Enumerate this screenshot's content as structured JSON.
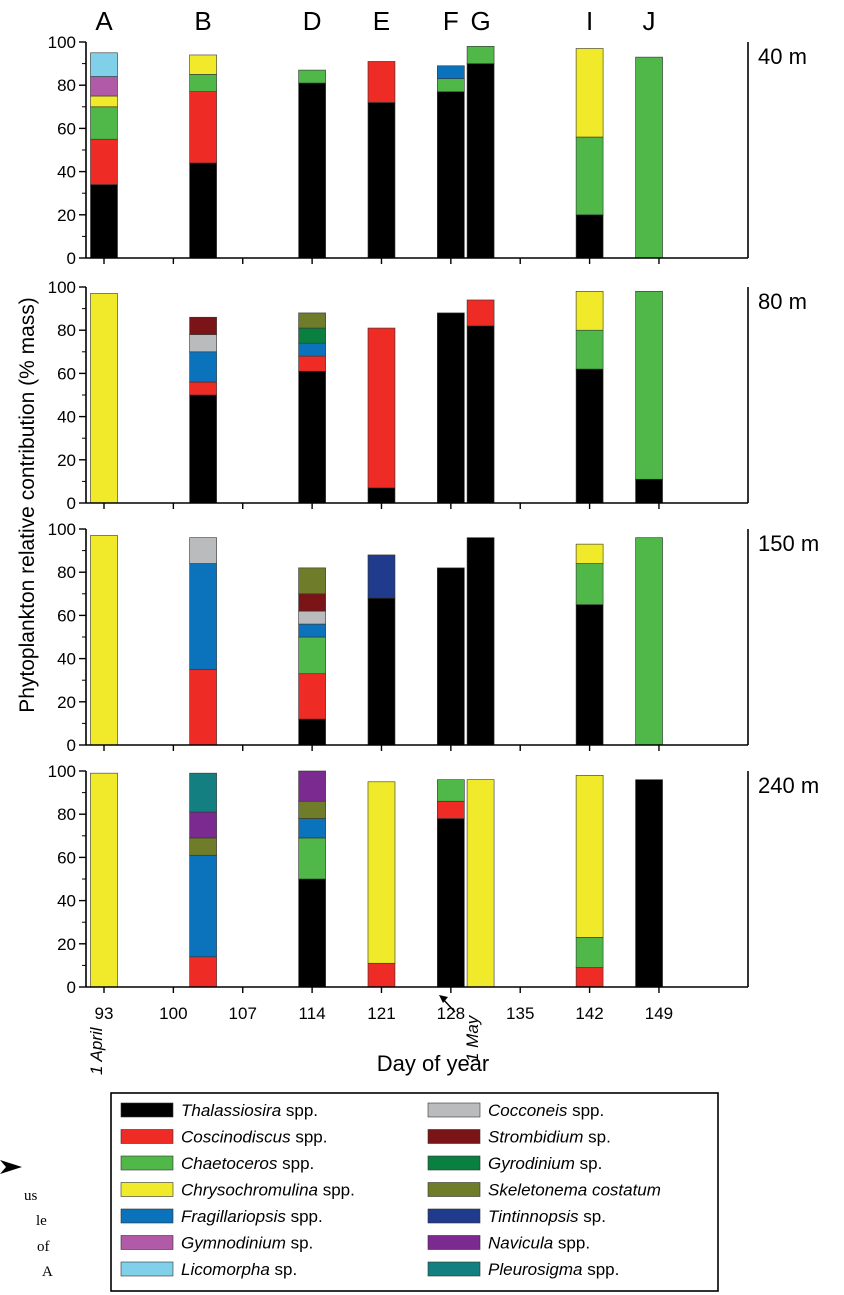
{
  "chart_data": {
    "type": "bar",
    "stacked": true,
    "ylabel": "Phytoplankton relative contribution (% mass)",
    "xlabel": "Day of year",
    "ylim": [
      0,
      100
    ],
    "yticks": [
      0,
      20,
      40,
      60,
      80,
      100
    ],
    "xlim": [
      90,
      150
    ],
    "xticks": [
      93,
      100,
      107,
      114,
      121,
      128,
      135,
      142,
      149
    ],
    "annotations": {
      "april": "1 April",
      "may": "1 May"
    },
    "stations": [
      {
        "label": "A",
        "day": 93
      },
      {
        "label": "B",
        "day": 103
      },
      {
        "label": "D",
        "day": 114
      },
      {
        "label": "E",
        "day": 121
      },
      {
        "label": "F",
        "day": 128
      },
      {
        "label": "G",
        "day": 131
      },
      {
        "label": "I",
        "day": 142
      },
      {
        "label": "J",
        "day": 148
      }
    ],
    "taxa": [
      {
        "key": "thal",
        "genus": "Thalassiosira",
        "suffix": " spp.",
        "color": "#000000"
      },
      {
        "key": "cosc",
        "genus": "Coscinodiscus",
        "suffix": " spp.",
        "color": "#ee2b24"
      },
      {
        "key": "chae",
        "genus": "Chaetoceros",
        "suffix": " spp.",
        "color": "#4fb848"
      },
      {
        "key": "chry",
        "genus": "Chrysochromulina",
        "suffix": " spp.",
        "color": "#f0ea2a"
      },
      {
        "key": "frag",
        "genus": "Fragillariopsis",
        "suffix": " spp.",
        "color": "#0b72bc"
      },
      {
        "key": "gymn",
        "genus": "Gymnodinium",
        "suffix": " sp.",
        "color": "#b05aa8"
      },
      {
        "key": "lico",
        "genus": "Licomorpha",
        "suffix": " sp.",
        "color": "#7fd0e8"
      },
      {
        "key": "cocc",
        "genus": "Cocconeis",
        "suffix": " spp.",
        "color": "#b9bbbd"
      },
      {
        "key": "stro",
        "genus": "Strombidium",
        "suffix": " sp.",
        "color": "#7b1416"
      },
      {
        "key": "gyro",
        "genus": "Gyrodinium",
        "suffix": " sp.",
        "color": "#0a8040"
      },
      {
        "key": "skel",
        "genus": "Skeletonema costatum",
        "suffix": "",
        "color": "#6f7d2a"
      },
      {
        "key": "tint",
        "genus": "Tintinnopsis",
        "suffix": " sp.",
        "color": "#213b8c"
      },
      {
        "key": "navi",
        "genus": "Navicula",
        "suffix": " spp.",
        "color": "#7b2a8f"
      },
      {
        "key": "pleu",
        "genus": "Pleurosigma",
        "suffix": " spp.",
        "color": "#137f80"
      }
    ],
    "panels": [
      {
        "depth": "40 m",
        "bars": {
          "A": [
            [
              "thal",
              34
            ],
            [
              "cosc",
              21
            ],
            [
              "chae",
              15
            ],
            [
              "chry",
              5
            ],
            [
              "gymn",
              9
            ],
            [
              "lico",
              11
            ]
          ],
          "B": [
            [
              "thal",
              44
            ],
            [
              "cosc",
              33
            ],
            [
              "chae",
              8
            ],
            [
              "chry",
              9
            ]
          ],
          "D": [
            [
              "thal",
              81
            ],
            [
              "chae",
              6
            ]
          ],
          "E": [
            [
              "thal",
              72
            ],
            [
              "cosc",
              19
            ]
          ],
          "F": [
            [
              "thal",
              77
            ],
            [
              "chae",
              6
            ],
            [
              "frag",
              6
            ]
          ],
          "G": [
            [
              "thal",
              90
            ],
            [
              "chae",
              8
            ]
          ],
          "I": [
            [
              "thal",
              20
            ],
            [
              "chae",
              36
            ],
            [
              "chry",
              41
            ]
          ],
          "J": [
            [
              "chae",
              93
            ]
          ]
        }
      },
      {
        "depth": "80 m",
        "bars": {
          "A": [
            [
              "chry",
              97
            ]
          ],
          "B": [
            [
              "thal",
              50
            ],
            [
              "cosc",
              6
            ],
            [
              "frag",
              14
            ],
            [
              "cocc",
              8
            ],
            [
              "stro",
              8
            ]
          ],
          "D": [
            [
              "thal",
              61
            ],
            [
              "cosc",
              7
            ],
            [
              "frag",
              6
            ],
            [
              "gyro",
              7
            ],
            [
              "skel",
              7
            ]
          ],
          "E": [
            [
              "thal",
              7
            ],
            [
              "cosc",
              74
            ]
          ],
          "F": [
            [
              "thal",
              88
            ]
          ],
          "G": [
            [
              "thal",
              82
            ],
            [
              "cosc",
              12
            ]
          ],
          "I": [
            [
              "thal",
              62
            ],
            [
              "chae",
              18
            ],
            [
              "chry",
              18
            ]
          ],
          "J": [
            [
              "thal",
              11
            ],
            [
              "chae",
              87
            ]
          ]
        }
      },
      {
        "depth": "150 m",
        "bars": {
          "A": [
            [
              "chry",
              97
            ]
          ],
          "B": [
            [
              "cosc",
              35
            ],
            [
              "frag",
              49
            ],
            [
              "cocc",
              12
            ]
          ],
          "D": [
            [
              "thal",
              12
            ],
            [
              "cosc",
              21
            ],
            [
              "chae",
              17
            ],
            [
              "frag",
              6
            ],
            [
              "cocc",
              6
            ],
            [
              "stro",
              8
            ],
            [
              "skel",
              12
            ]
          ],
          "E": [
            [
              "thal",
              68
            ],
            [
              "tint",
              20
            ]
          ],
          "F": [
            [
              "thal",
              82
            ]
          ],
          "G": [
            [
              "thal",
              96
            ]
          ],
          "I": [
            [
              "thal",
              65
            ],
            [
              "chae",
              19
            ],
            [
              "chry",
              9
            ]
          ],
          "J": [
            [
              "chae",
              96
            ]
          ]
        }
      },
      {
        "depth": "240 m",
        "bars": {
          "A": [
            [
              "chry",
              99
            ]
          ],
          "B": [
            [
              "cosc",
              14
            ],
            [
              "frag",
              47
            ],
            [
              "skel",
              8
            ],
            [
              "navi",
              12
            ],
            [
              "pleu",
              18
            ]
          ],
          "D": [
            [
              "thal",
              50
            ],
            [
              "chae",
              19
            ],
            [
              "frag",
              9
            ],
            [
              "skel",
              8
            ],
            [
              "navi",
              14
            ]
          ],
          "E": [
            [
              "cosc",
              11
            ],
            [
              "chry",
              84
            ]
          ],
          "F": [
            [
              "thal",
              78
            ],
            [
              "cosc",
              8
            ],
            [
              "chae",
              10
            ]
          ],
          "G": [
            [
              "chry",
              96
            ]
          ],
          "I": [
            [
              "cosc",
              9
            ],
            [
              "chae",
              14
            ],
            [
              "chry",
              75
            ]
          ],
          "J": [
            [
              "thal",
              96
            ]
          ]
        }
      }
    ]
  },
  "caption_fragments": [
    "us",
    "le",
    "of",
    "A"
  ]
}
